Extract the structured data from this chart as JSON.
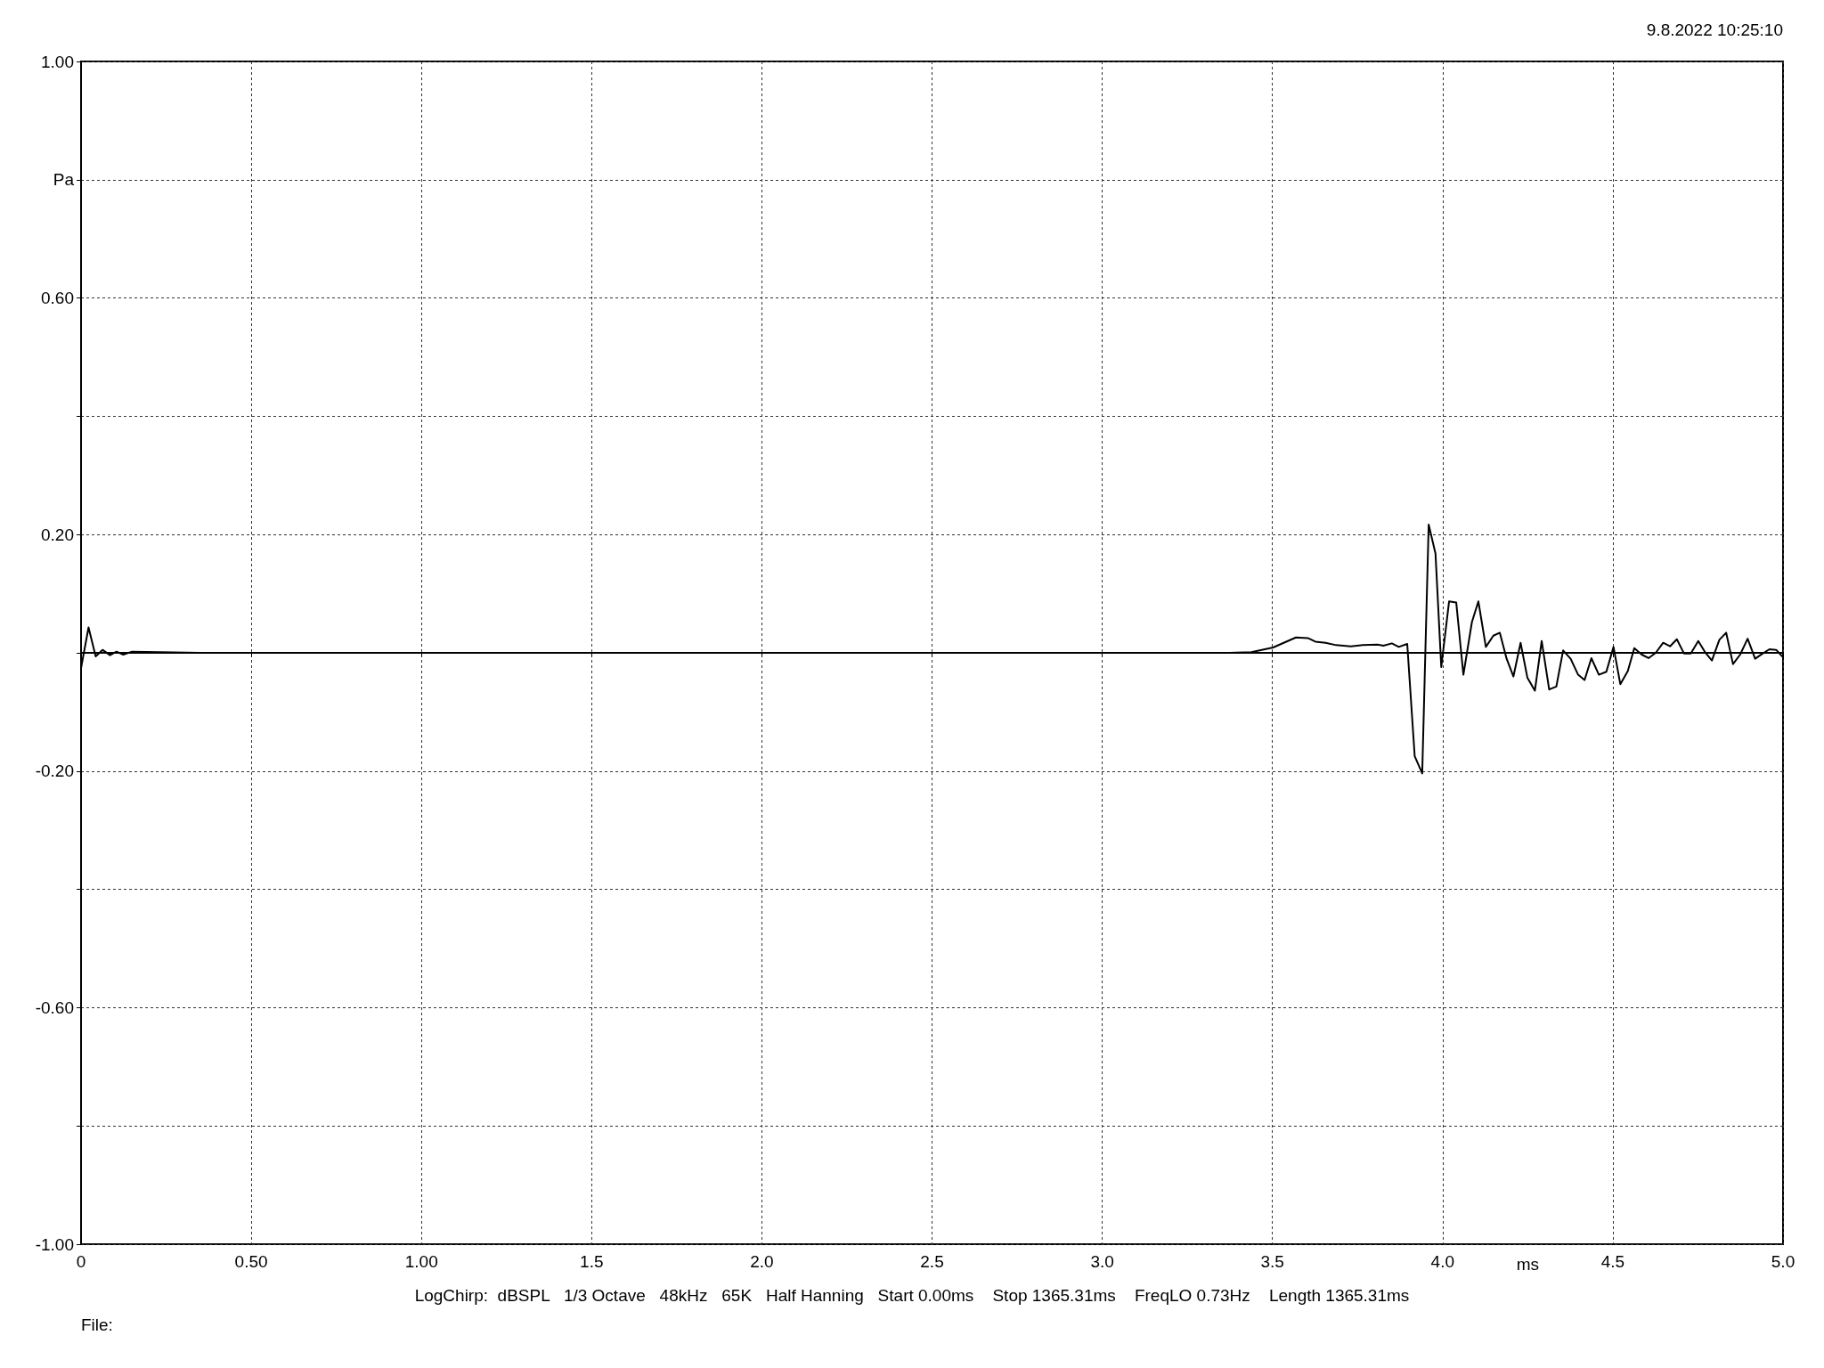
{
  "chart_data": {
    "type": "line",
    "xlabel": "ms",
    "annotations": [
      "9.8.2022 10:25:10",
      "LogChirp:  dBSPL   1/3 Octave   48kHz   65K   Half Hanning   Start 0.00ms    Stop 1365.31ms    FreqLO 0.73Hz    Length 1365.31ms",
      "File:"
    ],
    "series": [
      {
        "color": "#000000",
        "x": [
          0,
          0.022,
          0.043,
          0.063,
          0.085,
          0.104,
          0.124,
          0.15,
          0.35,
          3.373,
          3.438,
          3.502,
          3.569,
          3.604,
          3.626,
          3.656,
          3.687,
          3.73,
          3.765,
          3.809,
          3.826,
          3.851,
          3.871,
          3.896,
          3.918,
          3.94,
          3.959,
          3.979,
          3.996,
          4.019,
          4.04,
          4.061,
          4.086,
          4.105,
          4.127,
          4.149,
          4.168,
          4.188,
          4.208,
          4.229,
          4.249,
          4.271,
          4.291,
          4.313,
          4.334,
          4.354,
          4.376,
          4.398,
          4.417,
          4.437,
          4.459,
          4.481,
          4.502,
          4.522,
          4.544,
          4.563,
          4.585,
          4.605,
          4.626,
          4.648,
          4.668,
          4.688,
          4.709,
          4.729,
          4.751,
          4.771,
          4.791,
          4.813,
          4.833,
          4.853,
          4.874,
          4.896,
          4.918,
          4.938,
          4.96,
          4.98,
          4.999
        ],
        "values": [
          -0.026,
          0.043,
          -0.006,
          0.005,
          -0.004,
          0.002,
          -0.003,
          0.002,
          0,
          0,
          0.001,
          0.009,
          0.026,
          0.025,
          0.019,
          0.017,
          0.013,
          0.011,
          0.013,
          0.014,
          0.012,
          0.016,
          0.01,
          0.015,
          -0.175,
          -0.204,
          0.217,
          0.168,
          -0.024,
          0.087,
          0.085,
          -0.037,
          0.052,
          0.087,
          0.01,
          0.029,
          0.034,
          -0.01,
          -0.04,
          0.017,
          -0.042,
          -0.064,
          0.02,
          -0.062,
          -0.057,
          0.004,
          -0.01,
          -0.037,
          -0.046,
          -0.009,
          -0.037,
          -0.032,
          0.01,
          -0.053,
          -0.031,
          0.008,
          -0.003,
          -0.009,
          0,
          0.017,
          0.011,
          0.023,
          -0.001,
          -0.001,
          0.02,
          0.001,
          -0.013,
          0.022,
          0.034,
          -0.019,
          -0.003,
          0.024,
          -0.01,
          -0.002,
          0.006,
          0.005,
          -0.007
        ]
      }
    ],
    "xlim": [
      0,
      5
    ],
    "ylim": [
      -1,
      1
    ],
    "xticks": [
      0,
      {
        "value": 0.5,
        "label": "0.50"
      },
      {
        "value": 1,
        "label": "1.00"
      },
      1.5,
      {
        "value": 2,
        "label": "2.0"
      },
      2.5,
      {
        "value": 3,
        "label": "3.0"
      },
      3.5,
      {
        "value": 4,
        "label": "4.0"
      },
      4.5,
      {
        "value": 5,
        "label": "5.0"
      }
    ],
    "yticks": [
      {
        "value": -1,
        "label": "-1.00"
      },
      {
        "value": -0.8,
        "label": null
      },
      {
        "value": -0.6,
        "label": "-0.60"
      },
      {
        "value": -0.4,
        "label": null
      },
      {
        "value": -0.2,
        "label": "-0.20"
      },
      {
        "value": 0,
        "label": null
      },
      {
        "value": 0.2,
        "label": "0.20"
      },
      {
        "value": 0.4,
        "label": null
      },
      {
        "value": 0.6,
        "label": "0.60"
      },
      {
        "value": 0.8,
        "label": "Pa"
      },
      {
        "value": 1,
        "label": "1.00"
      }
    ],
    "grid": true,
    "marker": "none",
    "line_style": "solid"
  }
}
